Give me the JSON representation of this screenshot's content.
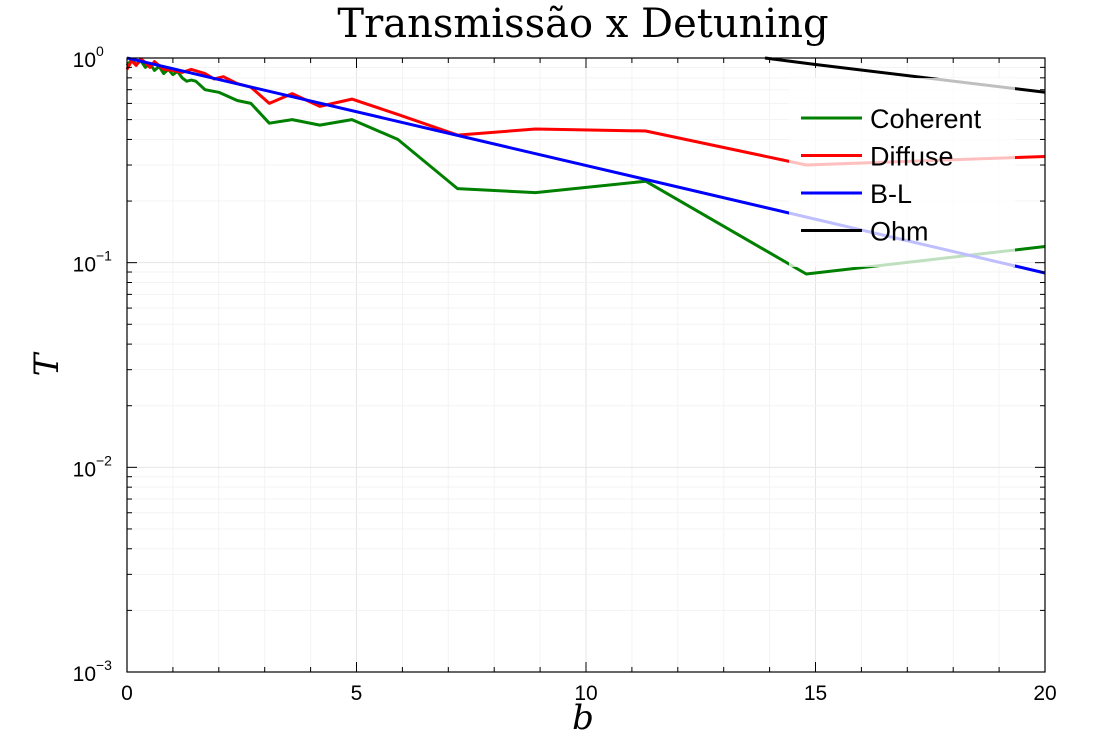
{
  "chart_data": {
    "type": "line",
    "title": "Transmissão x Detuning",
    "xlabel": "b",
    "ylabel": "T",
    "xlim": [
      0,
      20
    ],
    "ylim": [
      0.001,
      1
    ],
    "yscale": "log",
    "grid": true,
    "legend_position": "top-right",
    "x_ticks": [
      {
        "value": 0,
        "label": "0"
      },
      {
        "value": 5,
        "label": "5"
      },
      {
        "value": 10,
        "label": "10"
      },
      {
        "value": 15,
        "label": "15"
      },
      {
        "value": 20,
        "label": "20"
      }
    ],
    "y_ticks": [
      {
        "value": 1,
        "base": "10",
        "exp": "0"
      },
      {
        "value": 0.1,
        "base": "10",
        "exp": "−1"
      },
      {
        "value": 0.01,
        "base": "10",
        "exp": "−2"
      },
      {
        "value": 0.001,
        "base": "10",
        "exp": "−3"
      }
    ],
    "series": [
      {
        "name": "Coherent",
        "color": "#008000",
        "x": [
          0,
          0.1,
          0.2,
          0.3,
          0.4,
          0.5,
          0.6,
          0.7,
          0.8,
          0.9,
          1.0,
          1.1,
          1.2,
          1.3,
          1.4,
          1.5,
          1.7,
          2.0,
          2.4,
          2.7,
          3.1,
          3.6,
          4.2,
          4.9,
          5.9,
          7.2,
          8.9,
          11.3,
          14.8,
          20
        ],
        "y": [
          0.92,
          0.98,
          0.93,
          0.97,
          0.9,
          0.94,
          0.87,
          0.91,
          0.84,
          0.88,
          0.83,
          0.86,
          0.8,
          0.77,
          0.78,
          0.77,
          0.7,
          0.68,
          0.62,
          0.6,
          0.48,
          0.5,
          0.47,
          0.5,
          0.4,
          0.23,
          0.22,
          0.25,
          0.088,
          0.12
        ]
      },
      {
        "name": "Diffuse",
        "color": "#ff0000",
        "x": [
          0,
          0.1,
          0.2,
          0.3,
          0.4,
          0.5,
          0.6,
          0.8,
          1.0,
          1.2,
          1.4,
          1.7,
          1.9,
          2.1,
          2.4,
          2.7,
          3.1,
          3.6,
          4.2,
          4.9,
          5.9,
          7.2,
          8.9,
          11.3,
          14.8,
          20
        ],
        "y": [
          0.88,
          0.97,
          0.92,
          0.99,
          0.95,
          0.9,
          0.96,
          0.88,
          0.87,
          0.85,
          0.88,
          0.84,
          0.79,
          0.81,
          0.75,
          0.72,
          0.6,
          0.67,
          0.58,
          0.63,
          0.53,
          0.42,
          0.45,
          0.44,
          0.3,
          0.33
        ]
      },
      {
        "name": "B-L",
        "color": "#0000ff",
        "x": [
          0,
          20
        ],
        "y": [
          1.0,
          0.089
        ]
      },
      {
        "name": "Ohm",
        "color": "#000000",
        "x": [
          13.9,
          15,
          20
        ],
        "y": [
          1.0,
          0.93,
          0.68
        ]
      }
    ]
  }
}
